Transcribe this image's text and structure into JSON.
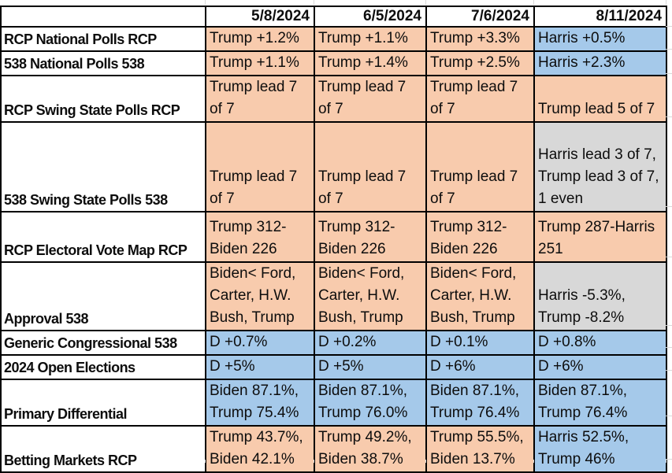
{
  "colors": {
    "salmon": "#F8CBAD",
    "blue": "#A5C9EA",
    "gray": "#D8D8D8",
    "grid": "#000000",
    "faint_grid": "#D9D9D9"
  },
  "table": {
    "corner_label": "",
    "columns": [
      {
        "label": "5/8/2024"
      },
      {
        "label": "6/5/2024"
      },
      {
        "label": "7/6/2024"
      },
      {
        "label": "8/11/2024"
      }
    ],
    "rows": [
      {
        "label": "RCP National Polls RCP",
        "cells": [
          {
            "text": "Trump +1.2%",
            "fill": "salmon"
          },
          {
            "text": "Trump +1.1%",
            "fill": "salmon"
          },
          {
            "text": "Trump +3.3%",
            "fill": "salmon"
          },
          {
            "text": "Harris +0.5%",
            "fill": "blue"
          }
        ]
      },
      {
        "label": "538 National Polls 538",
        "cells": [
          {
            "text": "Trump +1.1%",
            "fill": "salmon"
          },
          {
            "text": "Trump +1.4%",
            "fill": "salmon"
          },
          {
            "text": "Trump +2.5%",
            "fill": "salmon"
          },
          {
            "text": "Harris +2.3%",
            "fill": "blue"
          }
        ]
      },
      {
        "label": "RCP Swing State Polls RCP",
        "cells": [
          {
            "text": "Trump lead 7\nof 7",
            "fill": "salmon"
          },
          {
            "text": "Trump lead 7\nof 7",
            "fill": "salmon"
          },
          {
            "text": "Trump lead 7\nof 7",
            "fill": "salmon"
          },
          {
            "text": "Trump lead 5 of 7",
            "fill": "salmon"
          }
        ]
      },
      {
        "label": "538 Swing State Polls 538",
        "cells": [
          {
            "text": "Trump lead 7\nof 7",
            "fill": "salmon"
          },
          {
            "text": "Trump lead 7\nof 7",
            "fill": "salmon"
          },
          {
            "text": "Trump lead 7\nof 7",
            "fill": "salmon"
          },
          {
            "text": "Harris lead 3 of 7,\nTrump lead 3 of 7,\n1 even",
            "fill": "gray"
          }
        ]
      },
      {
        "label": "RCP Electoral Vote Map RCP",
        "cells": [
          {
            "text": "Trump 312-\nBiden 226",
            "fill": "salmon"
          },
          {
            "text": "Trump 312-\nBiden 226",
            "fill": "salmon"
          },
          {
            "text": "Trump 312-\nBiden 226",
            "fill": "salmon"
          },
          {
            "text": "Trump 287-Harris\n251",
            "fill": "salmon"
          }
        ]
      },
      {
        "label": "Approval 538",
        "cells": [
          {
            "text": "Biden< Ford,\nCarter, H.W.\nBush, Trump",
            "fill": "salmon"
          },
          {
            "text": "Biden< Ford,\nCarter, H.W.\nBush, Trump",
            "fill": "salmon"
          },
          {
            "text": "Biden< Ford,\nCarter, H.W.\nBush, Trump",
            "fill": "salmon"
          },
          {
            "text": "Harris -5.3%,\nTrump -8.2%",
            "fill": "gray"
          }
        ]
      },
      {
        "label": "Generic Congressional 538",
        "cells": [
          {
            "text": "D +0.7%",
            "fill": "blue"
          },
          {
            "text": "D +0.2%",
            "fill": "blue"
          },
          {
            "text": "D +0.1%",
            "fill": "blue"
          },
          {
            "text": "D +0.8%",
            "fill": "blue"
          }
        ]
      },
      {
        "label": "2024 Open Elections",
        "cells": [
          {
            "text": "D +5%",
            "fill": "blue"
          },
          {
            "text": "D +5%",
            "fill": "blue"
          },
          {
            "text": "D +6%",
            "fill": "blue"
          },
          {
            "text": "D +6%",
            "fill": "blue"
          }
        ]
      },
      {
        "label": "Primary Differential",
        "cells": [
          {
            "text": "Biden 87.1%,\nTrump 75.4%",
            "fill": "blue"
          },
          {
            "text": "Biden 87.1%,\nTrump 76.0%",
            "fill": "blue"
          },
          {
            "text": "Biden 87.1%,\nTrump 76.4%",
            "fill": "blue"
          },
          {
            "text": "Biden 87.1%,\nTrump 76.4%",
            "fill": "blue"
          }
        ]
      },
      {
        "label": "Betting Markets RCP",
        "cells": [
          {
            "text": "Trump 43.7%,\nBiden 42.1%",
            "fill": "salmon"
          },
          {
            "text": "Trump 49.2%,\nBiden 38.7%",
            "fill": "salmon"
          },
          {
            "text": "Trump 55.5%,\nBiden 13.7%",
            "fill": "salmon"
          },
          {
            "text": "Harris 52.5%,\nTrump 46%",
            "fill": "blue"
          }
        ]
      }
    ]
  }
}
